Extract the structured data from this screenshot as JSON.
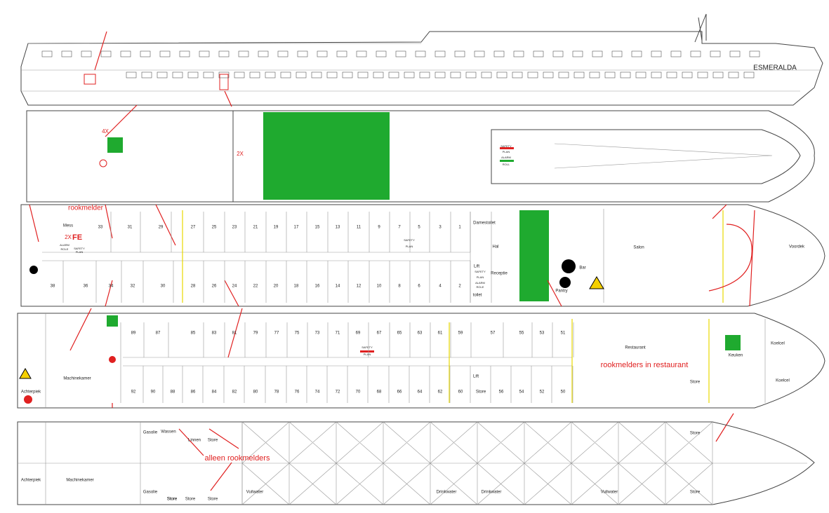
{
  "profile": {
    "ship_name": "ESMERALDA"
  },
  "sun_deck": {
    "marks": [
      "4X",
      "2X"
    ],
    "panel": [
      "SAFETY",
      "PLAN",
      "ALARM",
      "ROLL"
    ]
  },
  "upper_deck": {
    "note": "rookmelder",
    "fe": "2X",
    "fe_label": "FE",
    "rooms": [
      "Mess",
      "Damestoilet",
      "Hal",
      "Salon",
      "Voordek",
      "Receptie",
      "Pantry",
      "Bar",
      "Lift",
      "toilet"
    ],
    "panel": [
      "ALARM",
      "ROLE",
      "SAFETY",
      "PLAN",
      "SAFETY",
      "PLAN",
      "SAFETY",
      "PLAN",
      "ALARM",
      "ROLE"
    ],
    "cabins_top": [
      33,
      31,
      29,
      27,
      25,
      23,
      21,
      19,
      17,
      15,
      13,
      11,
      9,
      7,
      5,
      3,
      1
    ],
    "cabins_bottom": [
      38,
      36,
      34,
      32,
      30,
      28,
      26,
      24,
      22,
      20,
      18,
      16,
      14,
      12,
      10,
      8,
      6,
      4,
      2
    ]
  },
  "main_deck": {
    "note": "rookmelders in restaurant",
    "rooms": [
      "Machinekamer",
      "Achterpiek",
      "Restaurant",
      "Keuken",
      "Koelcel",
      "Koelcel",
      "Lift",
      "Store"
    ],
    "panel": [
      "SAFETY",
      "PLAN"
    ],
    "cabins_top": [
      89,
      87,
      85,
      83,
      81,
      79,
      77,
      75,
      73,
      71,
      69,
      67,
      65,
      63,
      61,
      59,
      57,
      55,
      53,
      51
    ],
    "cabins_bottom": [
      92,
      90,
      88,
      86,
      84,
      82,
      80,
      78,
      76,
      74,
      72,
      70,
      68,
      66,
      64,
      62,
      60,
      "Store",
      56,
      54,
      52,
      50
    ]
  },
  "lower_deck": {
    "note": "alleen rookmelders",
    "rooms": [
      "Achterpiek",
      "Machinekamer",
      "Gasolie",
      "Wassen",
      "Linnen",
      "Store",
      "Store",
      "Gasolie",
      "Store",
      "Store",
      "Store",
      "Vuilwater",
      "Drinkwater",
      "Drinkwater",
      "Vuilwater",
      "Store",
      "Store"
    ]
  }
}
